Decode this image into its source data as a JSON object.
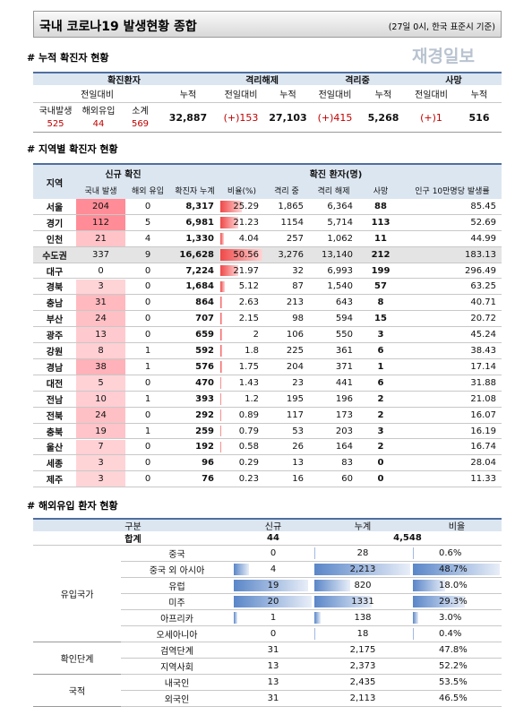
{
  "header": {
    "title": "국내 코로나19 발생현황 종합",
    "note": "(27일 0시, 한국 표준시 기준)",
    "logo": "재경일보"
  },
  "cumulative": {
    "heading": "# 누적 확진자 현황",
    "groups": [
      "확진환자",
      "격리해제",
      "격리중",
      "사망"
    ],
    "change": "전일대비",
    "total": "누적",
    "sub": [
      "국내발생",
      "해외유입",
      "소계"
    ],
    "sub_values": [
      "525",
      "44",
      "569"
    ],
    "totals": [
      "32,887",
      "27,103",
      "5,268",
      "516"
    ],
    "changes": [
      "(+)153",
      "(+)415",
      "(+)1"
    ]
  },
  "regional": {
    "heading": "# 지역별 확진자 현황",
    "columns": {
      "region": "지역",
      "new": "신규 확진",
      "confirmed": "확진 환자(명)",
      "sub": [
        "국내 발생",
        "해외 유입",
        "확진자 누계",
        "비율(%)",
        "격리 중",
        "격리 해제",
        "사망",
        "인구 10만명당 발생률"
      ]
    },
    "rows": [
      [
        "서울",
        "204",
        "0",
        "8,317",
        "25.29",
        "1,865",
        "6,364",
        "88",
        "85.45"
      ],
      [
        "경기",
        "112",
        "5",
        "6,981",
        "21.23",
        "1154",
        "5,714",
        "113",
        "52.69"
      ],
      [
        "인천",
        "21",
        "4",
        "1,330",
        "4.04",
        "257",
        "1,062",
        "11",
        "44.99"
      ],
      [
        "수도권",
        "337",
        "9",
        "16,628",
        "50.56",
        "3,276",
        "13,140",
        "212",
        "183.13"
      ],
      [
        "대구",
        "0",
        "0",
        "7,224",
        "21.97",
        "32",
        "6,993",
        "199",
        "296.49"
      ],
      [
        "경북",
        "3",
        "0",
        "1,684",
        "5.12",
        "87",
        "1,540",
        "57",
        "63.25"
      ],
      [
        "충남",
        "31",
        "0",
        "864",
        "2.63",
        "213",
        "643",
        "8",
        "40.71"
      ],
      [
        "부산",
        "24",
        "0",
        "707",
        "2.15",
        "98",
        "594",
        "15",
        "20.72"
      ],
      [
        "광주",
        "13",
        "0",
        "659",
        "2",
        "106",
        "550",
        "3",
        "45.24"
      ],
      [
        "강원",
        "8",
        "1",
        "592",
        "1.8",
        "225",
        "361",
        "6",
        "38.43"
      ],
      [
        "경남",
        "38",
        "1",
        "576",
        "1.75",
        "204",
        "371",
        "1",
        "17.14"
      ],
      [
        "대전",
        "5",
        "0",
        "470",
        "1.43",
        "23",
        "441",
        "6",
        "31.88"
      ],
      [
        "전남",
        "10",
        "1",
        "393",
        "1.2",
        "195",
        "196",
        "2",
        "21.08"
      ],
      [
        "전북",
        "24",
        "0",
        "292",
        "0.89",
        "117",
        "173",
        "2",
        "16.07"
      ],
      [
        "충북",
        "19",
        "1",
        "259",
        "0.79",
        "53",
        "203",
        "3",
        "16.19"
      ],
      [
        "울산",
        "7",
        "0",
        "192",
        "0.58",
        "26",
        "164",
        "2",
        "16.74"
      ],
      [
        "세종",
        "3",
        "0",
        "96",
        "0.29",
        "13",
        "83",
        "0",
        "28.04"
      ],
      [
        "제주",
        "3",
        "0",
        "76",
        "0.23",
        "16",
        "60",
        "0",
        "11.33"
      ]
    ]
  },
  "overseas": {
    "heading": "# 해외유입 환자 현황",
    "columns": [
      "구분",
      "신규",
      "누계",
      "비율"
    ],
    "total": {
      "label": "합계",
      "new": "44",
      "cumulative": "4,548"
    },
    "groups": [
      {
        "label": "유입국가",
        "rows": [
          [
            "중국",
            "0",
            "28",
            "0.6%"
          ],
          [
            "중국 외 아시아",
            "4",
            "2,213",
            "48.7%"
          ],
          [
            "유럽",
            "19",
            "820",
            "18.0%"
          ],
          [
            "미주",
            "20",
            "1331",
            "29.3%"
          ],
          [
            "아프리카",
            "1",
            "138",
            "3.0%"
          ],
          [
            "오세아니아",
            "0",
            "18",
            "0.4%"
          ]
        ]
      },
      {
        "label": "확인단계",
        "rows": [
          [
            "검역단계",
            "31",
            "2,175",
            "47.8%"
          ],
          [
            "지역사회",
            "13",
            "2,373",
            "52.2%"
          ]
        ]
      },
      {
        "label": "국적",
        "rows": [
          [
            "내국인",
            "13",
            "2,435",
            "53.5%"
          ],
          [
            "외국인",
            "31",
            "2,113",
            "46.5%"
          ]
        ]
      }
    ]
  }
}
